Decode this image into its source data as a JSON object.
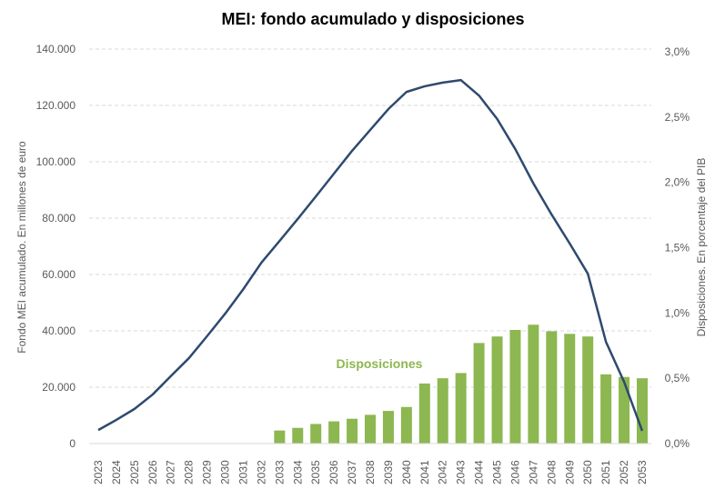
{
  "chart_data": {
    "type": "bar+line",
    "title": "MEI: fondo acumulado y disposiciones",
    "ylabel_left": "Fondo MEI acumulado. En millones de euro",
    "ylabel_right": "Disposiciones. En porcentaje del PIB",
    "ylim_left": [
      0,
      140000
    ],
    "ylim_right": [
      0,
      3.0
    ],
    "yticks_left": [
      "0",
      "20.000",
      "40.000",
      "60.000",
      "80.000",
      "100.000",
      "120.000",
      "140.000"
    ],
    "yticks_right": [
      "0,0%",
      "0,5%",
      "1,0%",
      "1,5%",
      "2,0%",
      "2,5%",
      "3,0%"
    ],
    "grid": "horizontal dashed",
    "categories": [
      "2023",
      "2024",
      "2025",
      "2026",
      "2027",
      "2028",
      "2029",
      "2030",
      "2031",
      "2032",
      "2033",
      "2034",
      "2035",
      "2036",
      "2037",
      "2038",
      "2039",
      "2040",
      "2041",
      "2042",
      "2043",
      "2044",
      "2045",
      "2046",
      "2047",
      "2048",
      "2049",
      "2050",
      "2051",
      "2052",
      "2053"
    ],
    "series": [
      {
        "kind": "line",
        "axis": "left",
        "color": "#2E4A6E",
        "values": [
          4800,
          8400,
          12300,
          17400,
          23900,
          30300,
          38100,
          46100,
          54800,
          64200,
          71900,
          79700,
          87700,
          95800,
          103900,
          111300,
          118700,
          124800,
          126800,
          128100,
          129000,
          123500,
          115200,
          104500,
          92300,
          81300,
          71000,
          60300,
          36100,
          21900,
          4500
        ]
      },
      {
        "kind": "bar",
        "axis": "right",
        "name": "Disposiciones",
        "color": "#8DB750",
        "values": [
          null,
          null,
          null,
          null,
          null,
          null,
          null,
          null,
          null,
          null,
          0.1,
          0.12,
          0.15,
          0.17,
          0.19,
          0.22,
          0.25,
          0.28,
          0.46,
          0.5,
          0.54,
          0.77,
          0.82,
          0.87,
          0.91,
          0.86,
          0.84,
          0.82,
          0.53,
          0.51,
          0.5
        ]
      }
    ],
    "annotation": "Disposiciones"
  }
}
